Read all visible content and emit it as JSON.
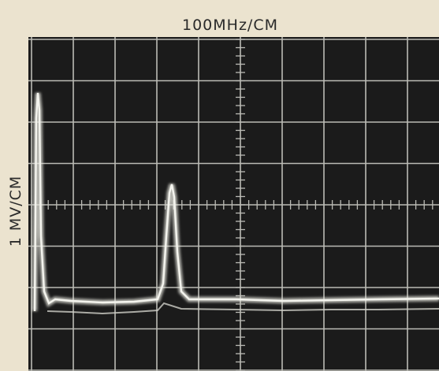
{
  "header": {
    "title": "100MHz/CM"
  },
  "side_label": "1 MV/CM"
}
